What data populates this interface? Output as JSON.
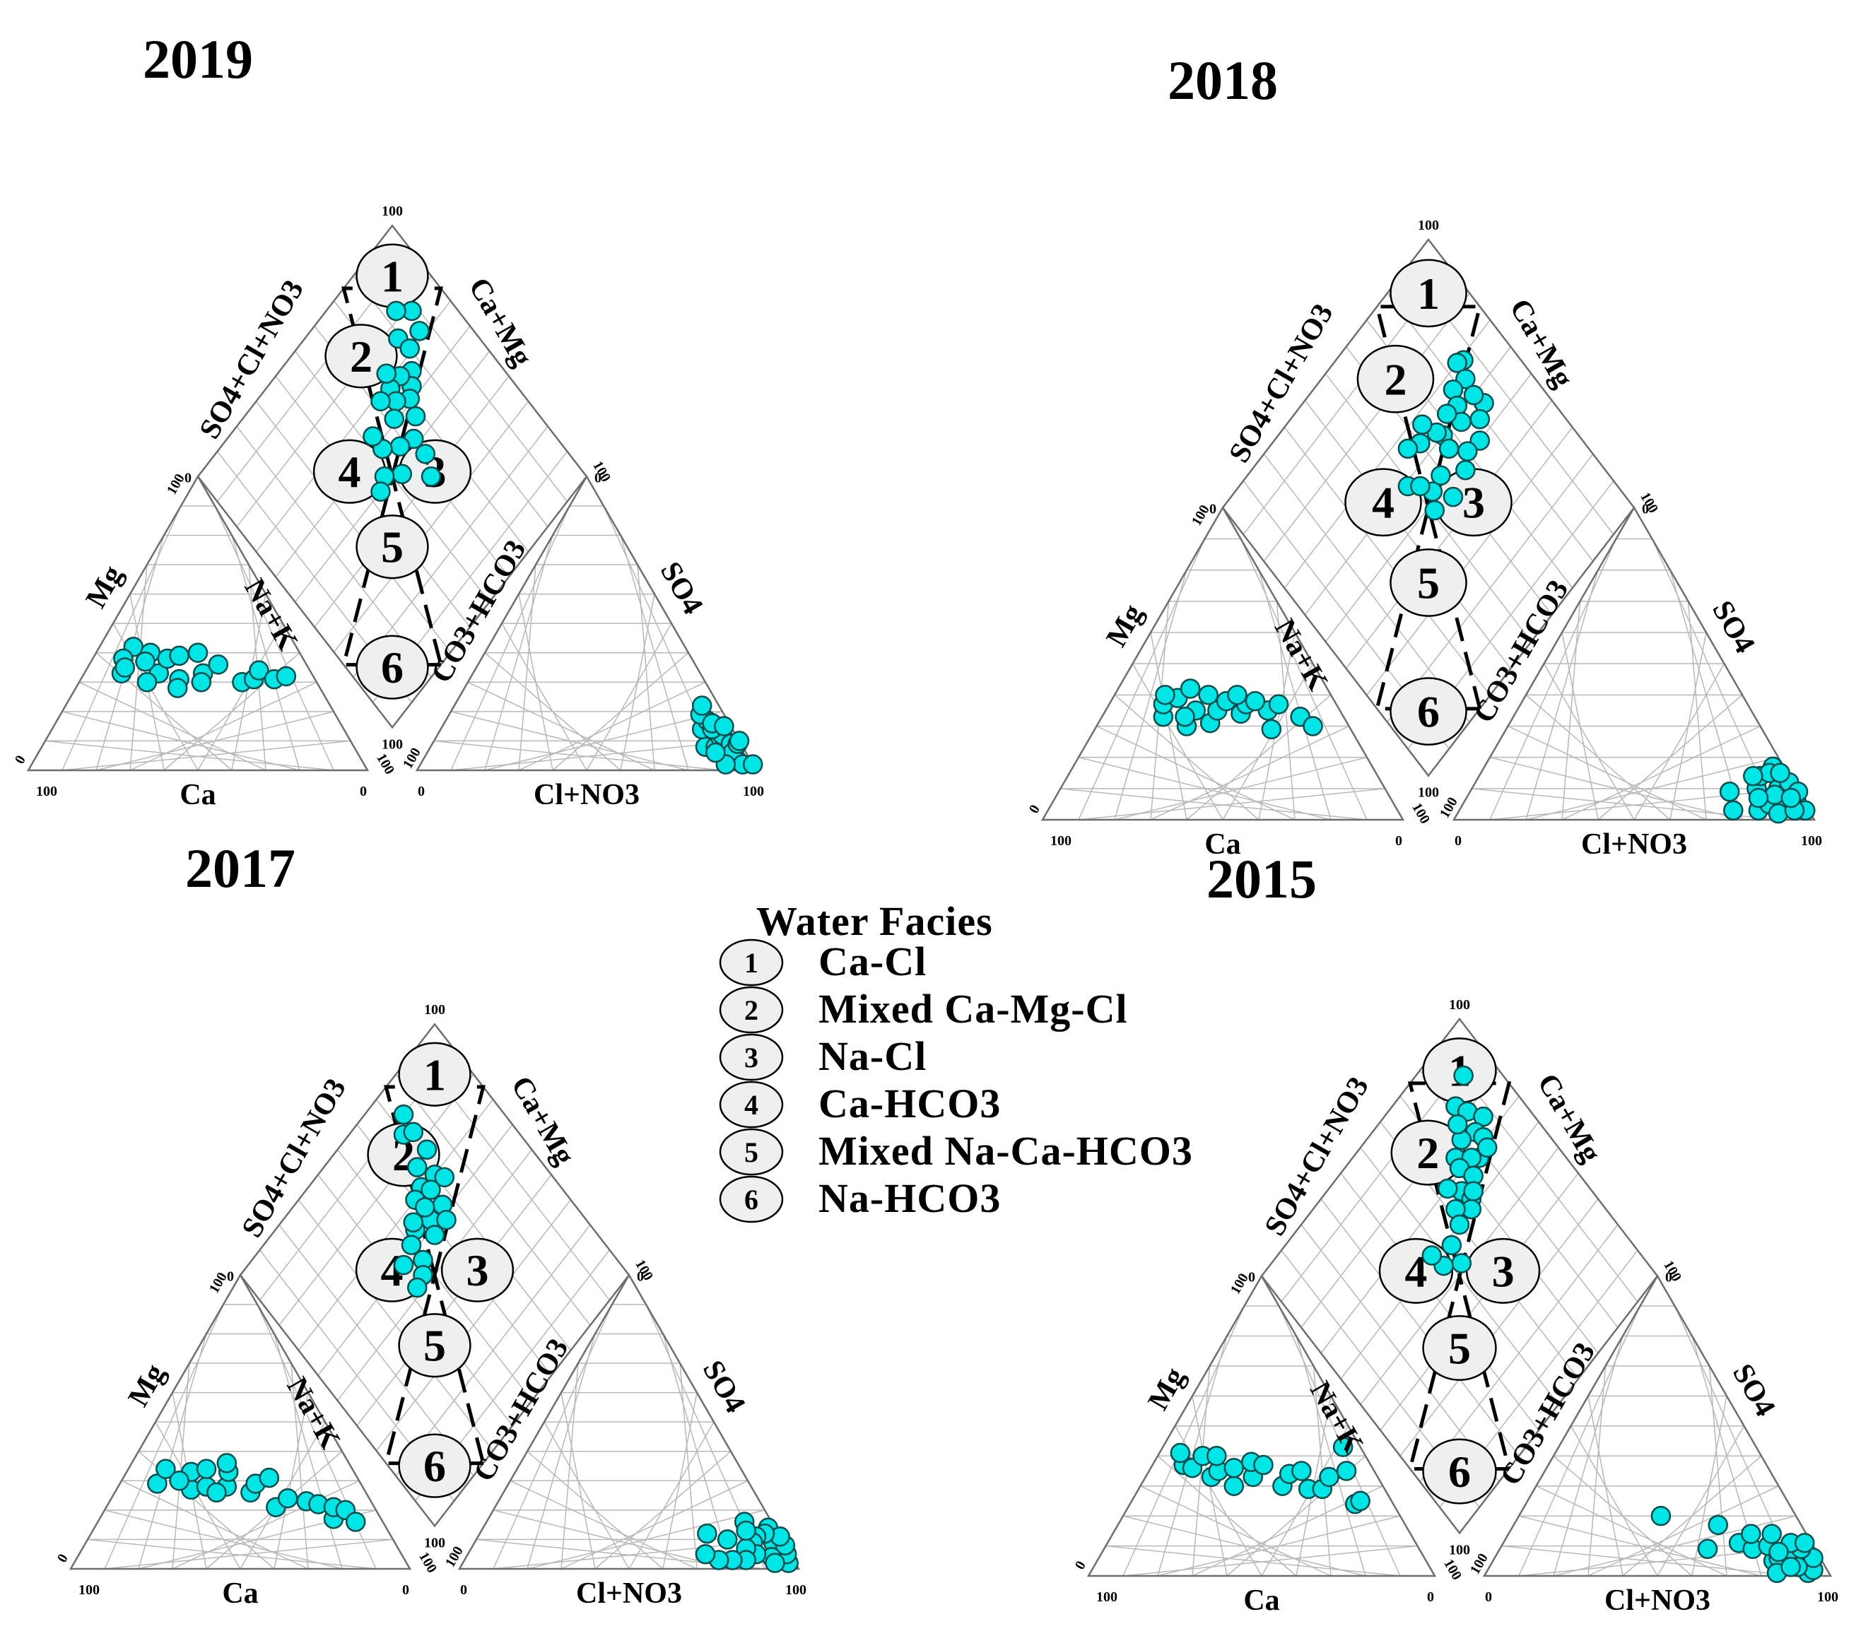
{
  "legend": {
    "title": "Water Facies",
    "items": [
      {
        "n": "1",
        "label": "Ca-Cl"
      },
      {
        "n": "2",
        "label": "Mixed Ca-Mg-Cl"
      },
      {
        "n": "3",
        "label": "Na-Cl"
      },
      {
        "n": "4",
        "label": "Ca-HCO3"
      },
      {
        "n": "5",
        "label": "Mixed Na-Ca-HCO3"
      },
      {
        "n": "6",
        "label": "Na-HCO3"
      }
    ]
  },
  "colors": {
    "point_fill": "#00e5e5",
    "point_stroke": "#004c4c",
    "grid": "#b8b8b8",
    "frame": "#6e6e6e",
    "zone_fill": "#efefef"
  },
  "chart_data": [
    {
      "type": "scatter",
      "title": "2019",
      "axis_labels": {
        "cation_left": "Mg",
        "cation_right": "Na+K",
        "cation_bottom": "Ca",
        "anion_left": "CO3+HCO3",
        "anion_right": "SO4",
        "anion_bottom": "Cl+NO3",
        "diamond_left": "SO4+Cl+NO3",
        "diamond_right": "Ca+Mg"
      },
      "tick_labels": [
        "0",
        "100"
      ],
      "cations_ca_mg_nak": [
        [
          56,
          33,
          11
        ],
        [
          48,
          42,
          10
        ],
        [
          53,
          38,
          9
        ],
        [
          45,
          33,
          22
        ],
        [
          44,
          40,
          16
        ],
        [
          40,
          38,
          22
        ],
        [
          36,
          39,
          25
        ],
        [
          32,
          33,
          35
        ],
        [
          30,
          40,
          30
        ],
        [
          26,
          36,
          38
        ],
        [
          22,
          30,
          48
        ],
        [
          18,
          31,
          51
        ],
        [
          15,
          34,
          51
        ],
        [
          12,
          31,
          57
        ],
        [
          8,
          32,
          60
        ],
        [
          54,
          35,
          11
        ],
        [
          47,
          37,
          16
        ],
        [
          40,
          31,
          29
        ],
        [
          34,
          30,
          36
        ],
        [
          50,
          30,
          20
        ],
        [
          42,
          28,
          30
        ]
      ],
      "anions_hco3_so4_clno3": [
        [
          11,
          8,
          81
        ],
        [
          8,
          8,
          84
        ],
        [
          9,
          14,
          77
        ],
        [
          6,
          17,
          77
        ],
        [
          5,
          11,
          84
        ],
        [
          5,
          8,
          87
        ],
        [
          4,
          12,
          84
        ],
        [
          6,
          14,
          80
        ],
        [
          7,
          19,
          74
        ],
        [
          5,
          22,
          73
        ],
        [
          4,
          4,
          92
        ],
        [
          3,
          9,
          88
        ],
        [
          5,
          16,
          79
        ],
        [
          2,
          15,
          83
        ],
        [
          4,
          6,
          90
        ],
        [
          1,
          9,
          90
        ],
        [
          0,
          10,
          90
        ],
        [
          3,
          2,
          95
        ],
        [
          0,
          2,
          98
        ],
        [
          8,
          2,
          90
        ],
        [
          9,
          6,
          85
        ]
      ],
      "diamond_pct_so4cl_camg": [
        [
          78,
          88
        ],
        [
          82,
          84
        ],
        [
          72,
          86
        ],
        [
          76,
          79
        ],
        [
          71,
          80
        ],
        [
          66,
          76
        ],
        [
          63,
          73
        ],
        [
          68,
          72
        ],
        [
          61,
          70
        ],
        [
          68,
          67
        ],
        [
          64,
          66
        ],
        [
          72,
          69
        ],
        [
          56,
          68
        ],
        [
          61,
          62
        ],
        [
          68,
          62
        ],
        [
          52,
          63
        ],
        [
          54,
          58
        ],
        [
          48,
          53
        ],
        [
          52,
          48
        ],
        [
          58,
          53
        ],
        [
          63,
          53
        ],
        [
          50,
          44
        ],
        [
          40,
          60
        ],
        [
          46,
          63
        ]
      ]
    },
    {
      "type": "scatter",
      "title": "2018",
      "axis_labels": {
        "cation_left": "Mg",
        "cation_right": "Na+K",
        "cation_bottom": "Ca",
        "anion_left": "CO3+HCO3",
        "anion_right": "SO4",
        "anion_bottom": "Cl+NO3",
        "diamond_left": "SO4+Cl+NO3",
        "diamond_right": "Ca+Mg"
      },
      "tick_labels": [
        "0",
        "100"
      ],
      "cations_ca_mg_nak": [
        [
          50,
          33,
          17
        ],
        [
          45,
          30,
          25
        ],
        [
          48,
          37,
          15
        ],
        [
          40,
          35,
          25
        ],
        [
          38,
          31,
          31
        ],
        [
          34,
          35,
          31
        ],
        [
          28,
          34,
          38
        ],
        [
          25,
          37,
          38
        ],
        [
          22,
          29,
          49
        ],
        [
          20,
          35,
          45
        ],
        [
          16,
          37,
          47
        ],
        [
          12,
          33,
          55
        ],
        [
          10,
          30,
          60
        ],
        [
          43,
          39,
          18
        ],
        [
          46,
          40,
          14
        ],
        [
          38,
          42,
          20
        ],
        [
          34,
          40,
          26
        ],
        [
          30,
          38,
          32
        ],
        [
          26,
          40,
          34
        ],
        [
          22,
          38,
          40
        ],
        [
          44,
          33,
          23
        ]
      ],
      "anions_hco3_so4_clno3": [
        [
          21,
          3,
          76
        ],
        [
          19,
          9,
          72
        ],
        [
          14,
          3,
          83
        ],
        [
          11,
          10,
          79
        ],
        [
          10,
          5,
          85
        ],
        [
          8,
          14,
          78
        ],
        [
          6,
          5,
          89
        ],
        [
          5,
          10,
          85
        ],
        [
          3,
          17,
          80
        ],
        [
          2,
          6,
          92
        ],
        [
          1,
          12,
          87
        ],
        [
          1,
          3,
          96
        ],
        [
          0,
          9,
          91
        ],
        [
          7,
          8,
          85
        ],
        [
          9,
          2,
          89
        ],
        [
          12,
          7,
          81
        ],
        [
          5,
          15,
          80
        ],
        [
          4,
          3,
          93
        ],
        [
          10,
          14,
          76
        ],
        [
          3,
          7,
          90
        ],
        [
          2,
          15,
          83
        ]
      ],
      "diamond_pct_so4cl_camg": [
        [
          69,
          86
        ],
        [
          70,
          84
        ],
        [
          65,
          83
        ],
        [
          56,
          83
        ],
        [
          60,
          82
        ],
        [
          54,
          79
        ],
        [
          66,
          78
        ],
        [
          62,
          76
        ],
        [
          58,
          74
        ],
        [
          63,
          72
        ],
        [
          60,
          67
        ],
        [
          50,
          75
        ],
        [
          51,
          70
        ],
        [
          62,
          66
        ],
        [
          67,
          64
        ],
        [
          48,
          66
        ],
        [
          56,
          66
        ],
        [
          64,
          60
        ],
        [
          53,
          59
        ],
        [
          66,
          56
        ],
        [
          52,
          54
        ],
        [
          48,
          51
        ],
        [
          59,
          49
        ],
        [
          56,
          52
        ],
        [
          46,
          58
        ]
      ]
    },
    {
      "type": "scatter",
      "title": "2017",
      "axis_labels": {
        "cation_left": "Mg",
        "cation_right": "Na+K",
        "cation_bottom": "Ca",
        "anion_left": "CO3+HCO3",
        "anion_right": "SO4",
        "anion_bottom": "Cl+NO3",
        "diamond_left": "SO4+Cl+NO3",
        "diamond_right": "Ca+Mg"
      },
      "tick_labels": [
        "0",
        "100"
      ],
      "cations_ca_mg_nak": [
        [
          60,
          29,
          11
        ],
        [
          55,
          34,
          11
        ],
        [
          51,
          27,
          22
        ],
        [
          48,
          33,
          19
        ],
        [
          46,
          28,
          26
        ],
        [
          43,
          34,
          23
        ],
        [
          40,
          28,
          32
        ],
        [
          37,
          33,
          30
        ],
        [
          34,
          26,
          40
        ],
        [
          31,
          29,
          40
        ],
        [
          29,
          21,
          50
        ],
        [
          24,
          24,
          52
        ],
        [
          19,
          23,
          58
        ],
        [
          16,
          22,
          62
        ],
        [
          14,
          17,
          69
        ],
        [
          12,
          21,
          67
        ],
        [
          9,
          20,
          71
        ],
        [
          8,
          16,
          76
        ],
        [
          53,
          30,
          17
        ],
        [
          44,
          26,
          30
        ],
        [
          36,
          36,
          28
        ],
        [
          26,
          31,
          43
        ]
      ],
      "anions_hco3_so4_clno3": [
        [
          4,
          3,
          93
        ],
        [
          3,
          9,
          88
        ],
        [
          2,
          2,
          96
        ],
        [
          2,
          14,
          84
        ],
        [
          1,
          5,
          94
        ],
        [
          0,
          8,
          92
        ],
        [
          0,
          11,
          89
        ],
        [
          4,
          12,
          84
        ],
        [
          6,
          4,
          90
        ],
        [
          7,
          11,
          82
        ],
        [
          9,
          9,
          82
        ],
        [
          8,
          16,
          76
        ],
        [
          10,
          5,
          85
        ],
        [
          12,
          7,
          81
        ],
        [
          14,
          3,
          83
        ],
        [
          16,
          10,
          74
        ],
        [
          18,
          3,
          79
        ],
        [
          21,
          12,
          67
        ],
        [
          22,
          3,
          75
        ],
        [
          25,
          5,
          70
        ],
        [
          9,
          13,
          78
        ],
        [
          6,
          2,
          92
        ]
      ],
      "diamond_pct_so4cl_camg": [
        [
          90,
          74
        ],
        [
          86,
          70
        ],
        [
          84,
          73
        ],
        [
          77,
          73
        ],
        [
          76,
          67
        ],
        [
          70,
          70
        ],
        [
          71,
          64
        ],
        [
          68,
          66
        ],
        [
          67,
          72
        ],
        [
          70,
          60
        ],
        [
          62,
          66
        ],
        [
          62,
          60
        ],
        [
          58,
          64
        ],
        [
          66,
          61
        ],
        [
          64,
          54
        ],
        [
          58,
          58
        ],
        [
          56,
          50
        ],
        [
          60,
          44
        ],
        [
          53,
          47
        ],
        [
          52,
          43
        ],
        [
          62,
          50
        ],
        [
          66,
          55
        ]
      ]
    },
    {
      "type": "scatter",
      "title": "2015",
      "axis_labels": {
        "cation_left": "Mg",
        "cation_right": "Na+K",
        "cation_bottom": "Ca",
        "anion_left": "CO3+HCO3",
        "anion_right": "SO4",
        "anion_bottom": "Cl+NO3",
        "diamond_left": "SO4+Cl+NO3",
        "diamond_right": "Ca+Mg"
      },
      "tick_labels": [
        "0",
        "100"
      ],
      "cations_ca_mg_nak": [
        [
          54,
          37,
          9
        ],
        [
          52,
          36,
          12
        ],
        [
          53,
          41,
          6
        ],
        [
          47,
          40,
          13
        ],
        [
          48,
          33,
          19
        ],
        [
          45,
          35,
          20
        ],
        [
          43,
          30,
          27
        ],
        [
          43,
          40,
          17
        ],
        [
          40,
          36,
          24
        ],
        [
          36,
          33,
          31
        ],
        [
          34,
          38,
          28
        ],
        [
          31,
          37,
          32
        ],
        [
          29,
          30,
          41
        ],
        [
          25,
          34,
          41
        ],
        [
          22,
          29,
          49
        ],
        [
          21,
          35,
          44
        ],
        [
          18,
          29,
          53
        ],
        [
          14,
          33,
          53
        ],
        [
          11,
          24,
          65
        ],
        [
          9,
          25,
          66
        ],
        [
          8,
          35,
          57
        ],
        [
          5,
          43,
          52
        ]
      ],
      "anions_hco3_so4_clno3": [
        [
          31,
          9,
          60
        ],
        [
          24,
          17,
          59
        ],
        [
          21,
          11,
          68
        ],
        [
          18,
          9,
          73
        ],
        [
          16,
          14,
          70
        ],
        [
          14,
          5,
          81
        ],
        [
          13,
          10,
          77
        ],
        [
          12,
          6,
          82
        ],
        [
          10,
          14,
          76
        ],
        [
          8,
          7,
          85
        ],
        [
          6,
          1,
          93
        ],
        [
          4,
          2,
          94
        ],
        [
          2,
          6,
          92
        ],
        [
          4,
          9,
          87
        ],
        [
          6,
          11,
          83
        ],
        [
          2,
          11,
          87
        ],
        [
          8,
          3,
          89
        ],
        [
          15,
          1,
          84
        ],
        [
          10,
          3,
          87
        ],
        [
          11,
          8,
          81
        ],
        [
          39,
          20,
          41
        ]
      ],
      "diamond_pct_so4cl_camg": [
        [
          88,
          90
        ],
        [
          84,
          82
        ],
        [
          80,
          84
        ],
        [
          75,
          87
        ],
        [
          74,
          82
        ],
        [
          76,
          77
        ],
        [
          74,
          72
        ],
        [
          68,
          78
        ],
        [
          70,
          76
        ],
        [
          71,
          71
        ],
        [
          66,
          73
        ],
        [
          66,
          67
        ],
        [
          70,
          64
        ],
        [
          62,
          68
        ],
        [
          63,
          70
        ],
        [
          60,
          66
        ],
        [
          64,
          62
        ],
        [
          60,
          60
        ],
        [
          58,
          54
        ],
        [
          52,
          53
        ],
        [
          56,
          48
        ],
        [
          61,
          47
        ],
        [
          80,
          79
        ],
        [
          71,
          83
        ],
        [
          68,
          82
        ]
      ]
    }
  ]
}
